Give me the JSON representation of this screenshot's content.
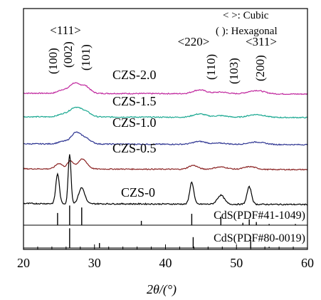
{
  "chart_data": {
    "type": "line",
    "xlabel": "2θ/(°)",
    "ylabel": "",
    "xlim": [
      20,
      60
    ],
    "x_ticks": [
      "20",
      "30",
      "40",
      "50",
      "60"
    ],
    "grid": false,
    "legend_notes": [
      "< >: Cubic",
      "( ): Hexagonal"
    ],
    "reflection_labels": [
      {
        "text": "<111>",
        "x": 26.6,
        "kind": "cubic"
      },
      {
        "text": "(100)",
        "x": 24.8,
        "kind": "hexagonal"
      },
      {
        "text": "(002)",
        "x": 26.5,
        "kind": "hexagonal"
      },
      {
        "text": "(101)",
        "x": 28.2,
        "kind": "hexagonal"
      },
      {
        "text": "<220>",
        "x": 43.9,
        "kind": "cubic"
      },
      {
        "text": "(110)",
        "x": 43.7,
        "kind": "hexagonal"
      },
      {
        "text": "(103)",
        "x": 47.8,
        "kind": "hexagonal"
      },
      {
        "text": "<311>",
        "x": 52.0,
        "kind": "cubic"
      },
      {
        "text": "(200)",
        "x": 51.8,
        "kind": "hexagonal"
      }
    ],
    "series": [
      {
        "name": "CZS-2.0",
        "color": "#c0279e",
        "baseline": 0.88,
        "peaks": [
          [
            25.5,
            0.08,
            0.9
          ],
          [
            27.1,
            0.22,
            0.9
          ],
          [
            28.6,
            0.18,
            1.0
          ],
          [
            44.8,
            0.09,
            1.3
          ],
          [
            47.8,
            0.04,
            1.3
          ],
          [
            52.8,
            0.08,
            1.6
          ]
        ]
      },
      {
        "name": "CZS-1.5",
        "color": "#1aa891",
        "baseline": 0.9,
        "peaks": [
          [
            25.6,
            0.07,
            1.0
          ],
          [
            27.2,
            0.2,
            1.0
          ],
          [
            28.6,
            0.14,
            1.1
          ],
          [
            44.8,
            0.08,
            1.3
          ],
          [
            47.8,
            0.04,
            1.3
          ],
          [
            52.8,
            0.07,
            1.6
          ]
        ]
      },
      {
        "name": "CZS-1.0",
        "color": "#2e3592",
        "baseline": 0.9,
        "peaks": [
          [
            25.6,
            0.06,
            1.0
          ],
          [
            27.3,
            0.24,
            0.9
          ],
          [
            28.6,
            0.15,
            1.1
          ],
          [
            44.8,
            0.07,
            1.3
          ],
          [
            47.8,
            0.03,
            1.3
          ],
          [
            52.8,
            0.06,
            1.6
          ]
        ]
      },
      {
        "name": "CZS-0.5",
        "color": "#8b2323",
        "baseline": 0.95,
        "peaks": [
          [
            25.0,
            0.14,
            0.7
          ],
          [
            26.6,
            0.2,
            0.6
          ],
          [
            28.3,
            0.25,
            0.9
          ],
          [
            43.9,
            0.1,
            0.9
          ],
          [
            47.8,
            0.06,
            1.3
          ],
          [
            51.9,
            0.07,
            1.2
          ]
        ]
      },
      {
        "name": "CZS-0",
        "color": "#000000",
        "baseline": 1.0,
        "peaks": [
          [
            24.8,
            0.6,
            0.35
          ],
          [
            26.5,
            1.0,
            0.28
          ],
          [
            28.2,
            0.32,
            0.6
          ],
          [
            43.7,
            0.44,
            0.4
          ],
          [
            47.8,
            0.18,
            0.7
          ],
          [
            51.8,
            0.35,
            0.45
          ]
        ]
      }
    ],
    "references": [
      {
        "name": "CdS(PDF#41-1049)",
        "lines": [
          [
            24.8,
            0.62
          ],
          [
            26.5,
            1.0
          ],
          [
            28.2,
            0.9
          ],
          [
            36.6,
            0.22
          ],
          [
            43.7,
            0.58
          ],
          [
            47.8,
            0.42
          ],
          [
            50.9,
            0.12
          ],
          [
            51.8,
            0.3
          ],
          [
            52.8,
            0.16
          ],
          [
            54.6,
            0.06
          ],
          [
            58.3,
            0.06
          ]
        ]
      },
      {
        "name": "CdS(PDF#80-0019)",
        "lines": [
          [
            26.5,
            1.0
          ],
          [
            30.7,
            0.25
          ],
          [
            43.9,
            0.55
          ],
          [
            52.0,
            0.4
          ],
          [
            54.6,
            0.06
          ]
        ]
      }
    ]
  }
}
